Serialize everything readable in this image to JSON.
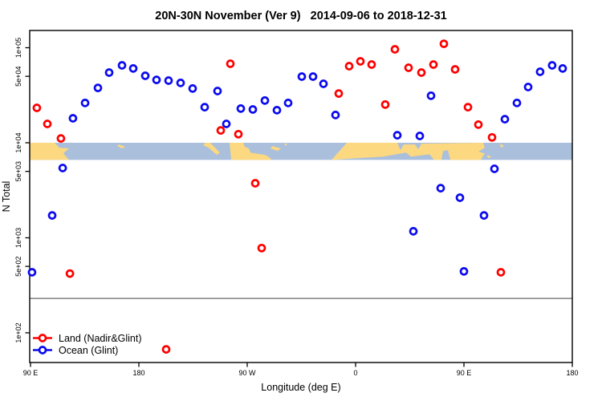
{
  "title": "20N-30N November (Ver 9)   2014-09-06 to 2018-12-31",
  "axes": {
    "x": {
      "label": "Longitude (deg E)",
      "ticks": [
        {
          "pos": 90,
          "label": "90 E"
        },
        {
          "pos": 180,
          "label": "180"
        },
        {
          "pos": 270,
          "label": "90 W"
        },
        {
          "pos": 360,
          "label": "0"
        },
        {
          "pos": 450,
          "label": "90 E"
        },
        {
          "pos": 540,
          "label": "180"
        }
      ]
    },
    "y": {
      "label": "N Total",
      "ticks": [
        {
          "value": 100000,
          "label": "1e+05"
        },
        {
          "value": 50000,
          "label": "5e+04"
        },
        {
          "value": 10000,
          "label": "1e+04"
        },
        {
          "value": 5000,
          "label": "5e+03"
        },
        {
          "value": 1000,
          "label": "1e+03"
        },
        {
          "value": 500,
          "label": "5e+02"
        },
        {
          "value": 100,
          "label": "1e+02"
        }
      ]
    }
  },
  "legend": {
    "items": [
      {
        "label": "Land (Nadir&Glint)",
        "color": "#FF0000"
      },
      {
        "label": "Ocean (Glint)",
        "color": "#0B0BEE"
      }
    ]
  },
  "colors": {
    "land_series": "#FF0000",
    "ocean_series": "#0B0BEE",
    "threshold_line": "#7f7f7f",
    "map_ocean": "#A9BFDC",
    "map_land": "#FCD880",
    "frame": "#000000"
  },
  "chart_data": {
    "type": "scatter",
    "title": "20N-30N November (Ver 9)   2014-09-06 to 2018-12-31",
    "xlabel": "Longitude (deg E)",
    "ylabel": "N Total",
    "x_axis_note": "continuous eastward longitude, 90E wrapping to 180 twice",
    "xlim": [
      90,
      540
    ],
    "ylim": [
      48,
      150000
    ],
    "log_y": true,
    "grid": false,
    "legend_position": "bottom-left",
    "threshold_line_N": 230,
    "map_band": {
      "N_range": [
        6600,
        10000
      ],
      "description": "20N-30N world-map strip: ocean blue, land yellow",
      "land_polygons": [
        [
          [
            89.3,
            0
          ],
          [
            110,
            0
          ],
          [
            114,
            0.29
          ],
          [
            122,
            0.33
          ],
          [
            117.3,
            0.62
          ],
          [
            122,
            1
          ],
          [
            89.3,
            1
          ]
        ],
        [
          [
            163.3,
            0.1
          ],
          [
            168.7,
            0.24
          ],
          [
            166,
            0.33
          ],
          [
            162,
            0.19
          ]
        ],
        [
          [
            235.3,
            0
          ],
          [
            239.3,
            0
          ],
          [
            247.3,
            0.57
          ],
          [
            244.7,
            0.71
          ],
          [
            238,
            0.29
          ],
          [
            233.3,
            0.14
          ]
        ],
        [
          [
            255.3,
            0
          ],
          [
            266.7,
            0
          ],
          [
            268,
            0.24
          ],
          [
            271.3,
            0.33
          ],
          [
            272.7,
            0.57
          ],
          [
            284.7,
            0.71
          ],
          [
            288.7,
            0.86
          ],
          [
            290,
            1
          ],
          [
            256.7,
            1
          ]
        ],
        [
          [
            290.7,
            0.19
          ],
          [
            298,
            0.33
          ],
          [
            295.3,
            0.48
          ],
          [
            289.3,
            0.33
          ]
        ],
        [
          [
            300.7,
            0.05
          ],
          [
            303.3,
            0.05
          ],
          [
            302,
            0.19
          ]
        ],
        [
          [
            352.7,
            0
          ],
          [
            394.7,
            0
          ],
          [
            397.3,
            0.43
          ],
          [
            400,
            0.1
          ],
          [
            409.3,
            0.1
          ],
          [
            412,
            0.38
          ],
          [
            414.7,
            0.05
          ],
          [
            466,
            0
          ],
          [
            467.3,
            0.29
          ],
          [
            462,
            0.52
          ],
          [
            467.3,
            0.62
          ],
          [
            464,
            1
          ],
          [
            438.7,
            1
          ],
          [
            436.7,
            0.43
          ],
          [
            432.7,
            0.48
          ],
          [
            431.3,
            1
          ],
          [
            425.3,
            1
          ],
          [
            421.3,
            0.67
          ],
          [
            406,
            0.81
          ],
          [
            402,
            0.57
          ],
          [
            382.7,
            0.81
          ],
          [
            361.3,
            0.9
          ],
          [
            340,
            1
          ]
        ],
        [
          [
            480,
            0.05
          ],
          [
            483.3,
            0.19
          ],
          [
            480.7,
            0.29
          ]
        ],
        [
          [
            469.3,
            0.71
          ],
          [
            472.7,
            0.81
          ],
          [
            470,
            0.9
          ]
        ]
      ]
    },
    "series": [
      {
        "name": "Land (Nadir&Glint)",
        "color": "#FF0000",
        "points": [
          [
            95.3,
            23300
          ],
          [
            104,
            15800
          ],
          [
            115.3,
            11100
          ],
          [
            122.7,
            420
          ],
          [
            202.7,
            67
          ],
          [
            248,
            13500
          ],
          [
            256,
            67800
          ],
          [
            262.7,
            12300
          ],
          [
            276.7,
            3750
          ],
          [
            282,
            780
          ],
          [
            346,
            33000
          ],
          [
            354.7,
            64000
          ],
          [
            364,
            71900
          ],
          [
            373.3,
            66500
          ],
          [
            384.7,
            25200
          ],
          [
            392.7,
            96200
          ],
          [
            404,
            61500
          ],
          [
            414.7,
            54700
          ],
          [
            424.7,
            66500
          ],
          [
            433.3,
            110000
          ],
          [
            442.7,
            59200
          ],
          [
            453.3,
            23700
          ],
          [
            462,
            15500
          ],
          [
            473.3,
            11400
          ],
          [
            480.7,
            434
          ]
        ]
      },
      {
        "name": "Ocean (Glint)",
        "color": "#0B0BEE",
        "points": [
          [
            91.3,
            434
          ],
          [
            108,
            1720
          ],
          [
            116.7,
            5420
          ],
          [
            125.3,
            18100
          ],
          [
            135.3,
            26200
          ],
          [
            146,
            37800
          ],
          [
            155.3,
            54700
          ],
          [
            166,
            65200
          ],
          [
            175.3,
            60400
          ],
          [
            185.3,
            50700
          ],
          [
            194.7,
            45900
          ],
          [
            204.7,
            45100
          ],
          [
            214.7,
            42600
          ],
          [
            224.7,
            37200
          ],
          [
            234.7,
            23700
          ],
          [
            245.3,
            35000
          ],
          [
            252.7,
            15800
          ],
          [
            264.7,
            22900
          ],
          [
            274.7,
            22400
          ],
          [
            284.7,
            27800
          ],
          [
            294.7,
            22000
          ],
          [
            304,
            26200
          ],
          [
            315.3,
            49700
          ],
          [
            324.7,
            49700
          ],
          [
            333.3,
            41700
          ],
          [
            343.3,
            19600
          ],
          [
            394.7,
            12000
          ],
          [
            408,
            1170
          ],
          [
            413.3,
            11800
          ],
          [
            422.7,
            31200
          ],
          [
            430.7,
            3330
          ],
          [
            446.7,
            2640
          ],
          [
            450,
            443
          ],
          [
            466.7,
            1720
          ],
          [
            475.3,
            5320
          ],
          [
            484,
            17700
          ],
          [
            494,
            26200
          ],
          [
            503.3,
            38600
          ],
          [
            513.3,
            55800
          ],
          [
            523.3,
            65200
          ],
          [
            532,
            60400
          ]
        ]
      }
    ]
  }
}
